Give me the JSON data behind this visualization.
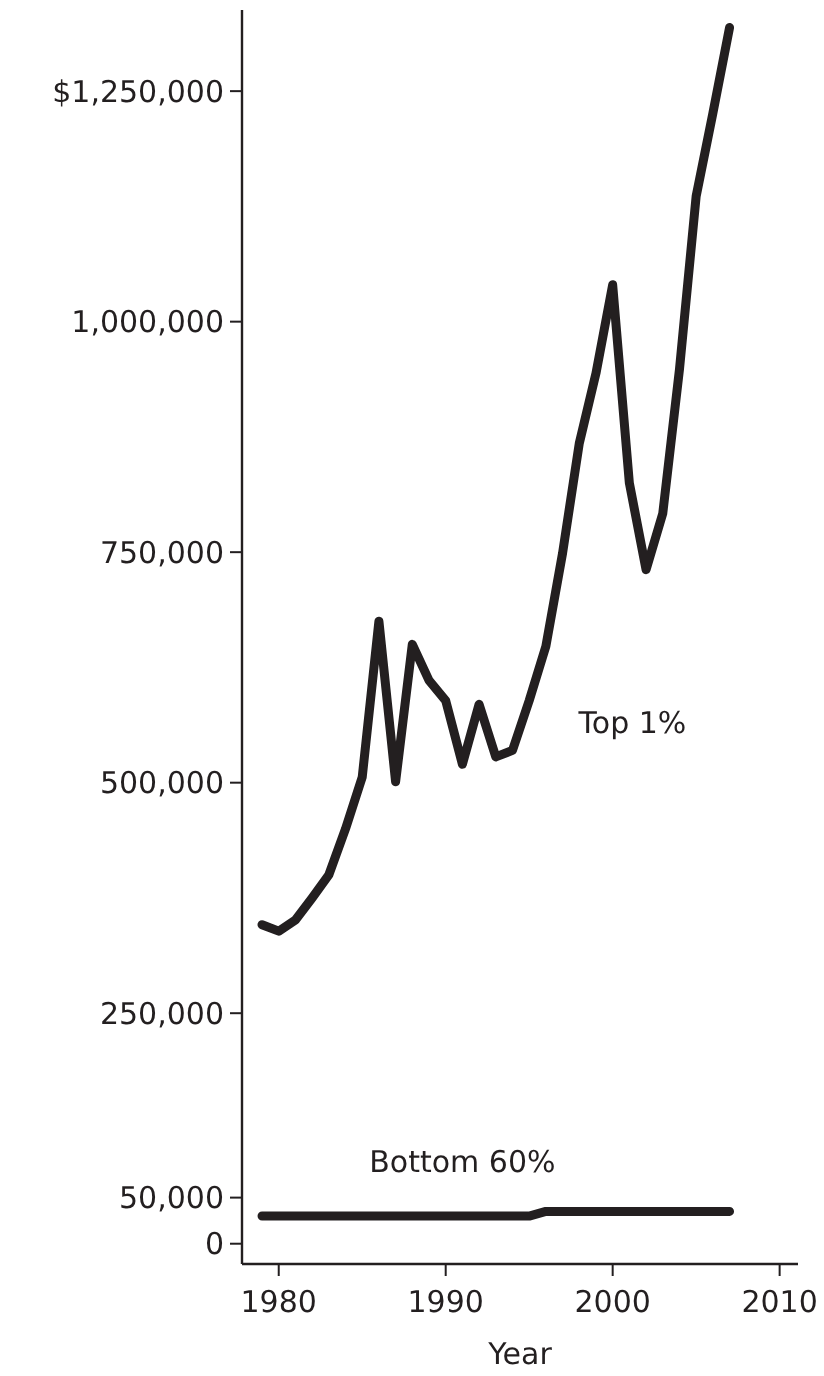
{
  "chart_data": {
    "type": "line",
    "xlabel": "Year",
    "x": [
      1979,
      1980,
      1981,
      1982,
      1983,
      1984,
      1985,
      1986,
      1987,
      1988,
      1989,
      1990,
      1991,
      1992,
      1993,
      1994,
      1995,
      1996,
      1997,
      1998,
      1999,
      2000,
      2001,
      2002,
      2003,
      2004,
      2005,
      2006,
      2007
    ],
    "series": [
      {
        "name": "Top 1%",
        "color": "#231f20",
        "values": [
          346000,
          339000,
          351000,
          375000,
          400000,
          450000,
          506000,
          675000,
          501000,
          650000,
          611000,
          589000,
          520000,
          585000,
          528000,
          535000,
          589000,
          648000,
          749000,
          868000,
          944000,
          1040000,
          825000,
          731000,
          792000,
          948000,
          1136000,
          1226000,
          1319000
        ]
      },
      {
        "name": "Bottom 60%",
        "color": "#231f20",
        "values": [
          30000,
          30000,
          30000,
          30000,
          30000,
          30000,
          30000,
          30000,
          30000,
          30000,
          30000,
          30000,
          30000,
          30000,
          30000,
          30000,
          30000,
          35000,
          35000,
          35000,
          35000,
          35000,
          35000,
          35000,
          35000,
          35000,
          35000,
          35000,
          35000
        ]
      }
    ],
    "xlim": [
      1977.8,
      2011.1
    ],
    "xticks": [
      1980,
      1990,
      2000,
      2010
    ],
    "ylim": [
      -22000,
      1338000
    ],
    "yticks": [
      0,
      {
        "value": 50000,
        "label": "50,000"
      },
      {
        "value": 250000,
        "label": "250,000"
      },
      {
        "value": 500000,
        "label": "500,000"
      },
      {
        "value": 750000,
        "label": "750,000"
      },
      {
        "value": 1000000,
        "label": "1,000,000"
      },
      {
        "value": 1250000,
        "label": "$1,250,000"
      }
    ],
    "grid": false,
    "line_style": "solid",
    "marker": "none"
  }
}
